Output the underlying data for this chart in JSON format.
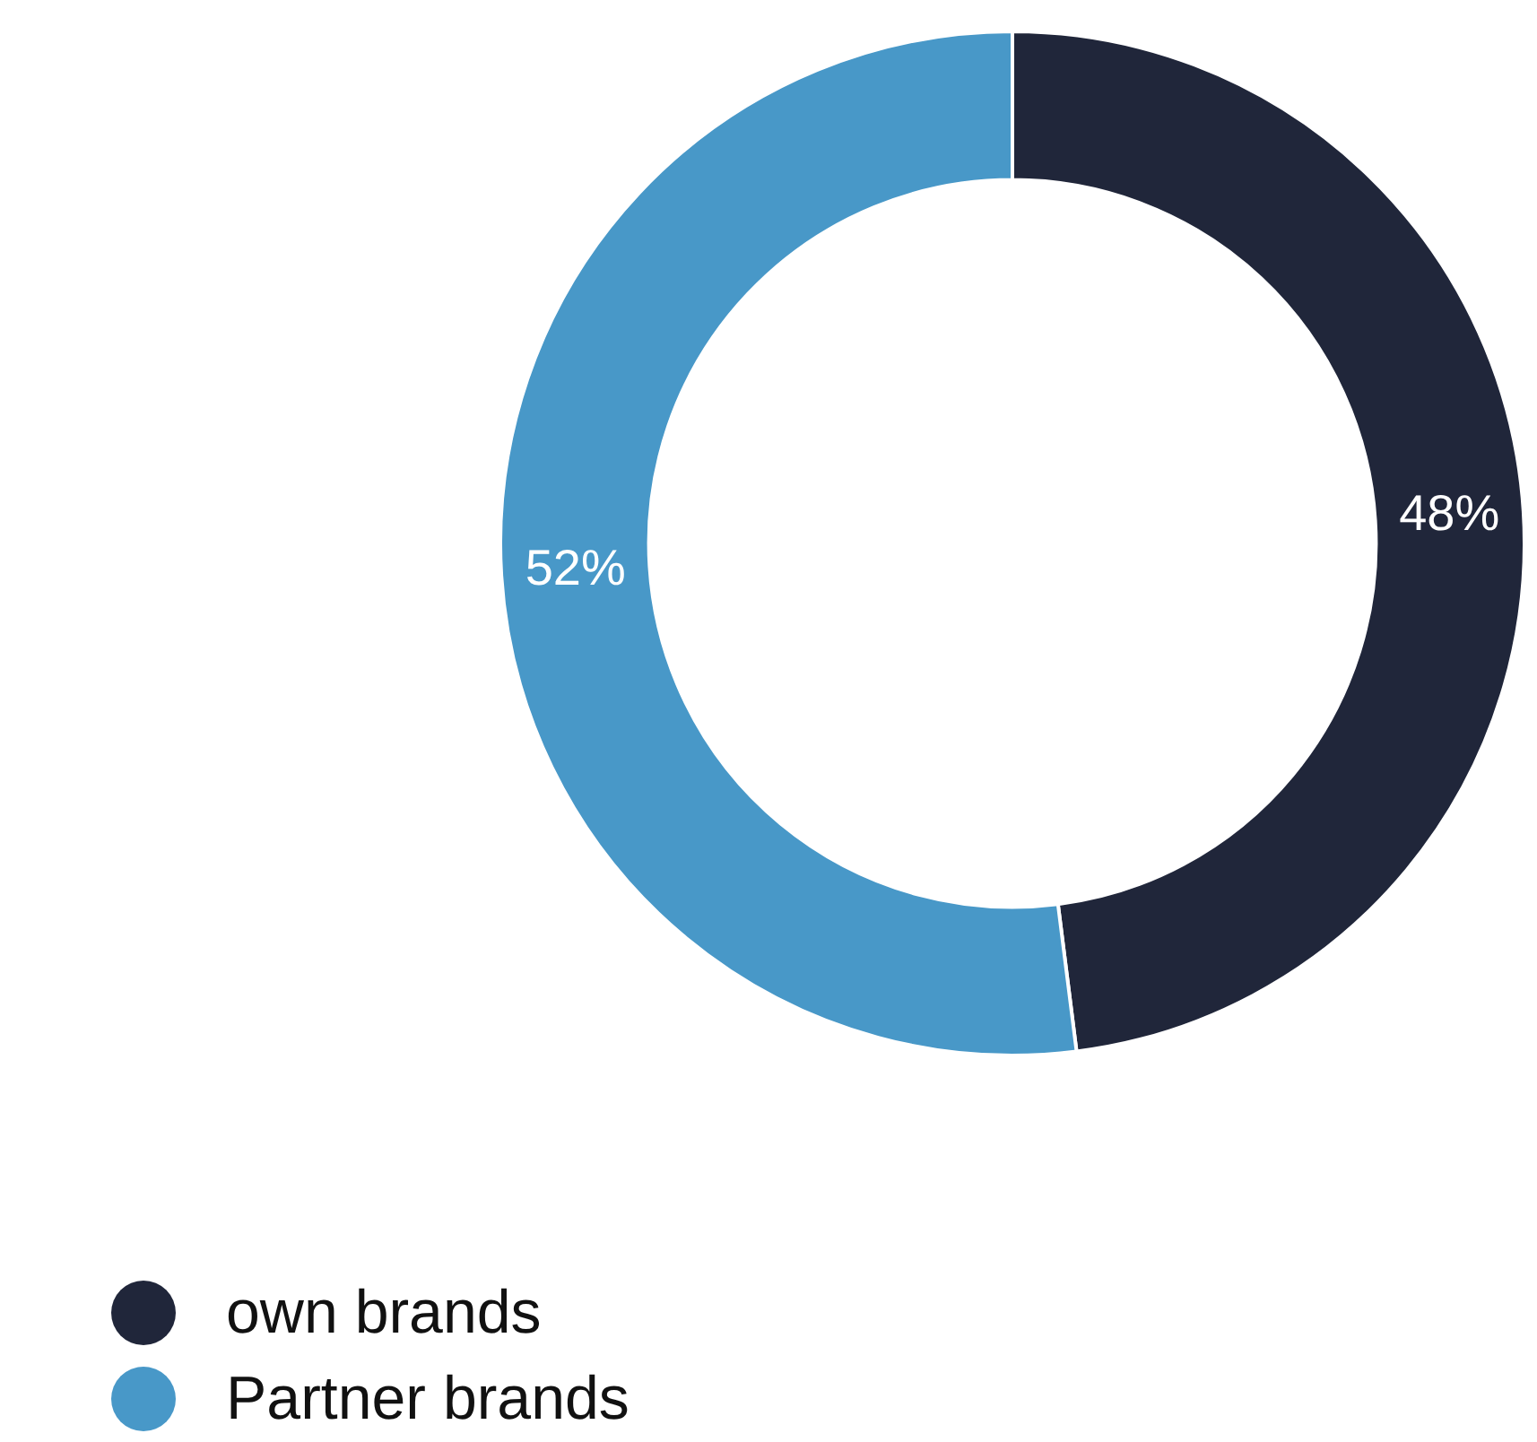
{
  "chart_data": {
    "type": "donut",
    "categories": [
      "own brands",
      "Partner brands"
    ],
    "values": [
      48,
      52
    ],
    "colors": [
      "#20263a",
      "#4898c8"
    ],
    "value_labels": [
      "48%",
      "52%"
    ],
    "legend": "bottom left"
  }
}
